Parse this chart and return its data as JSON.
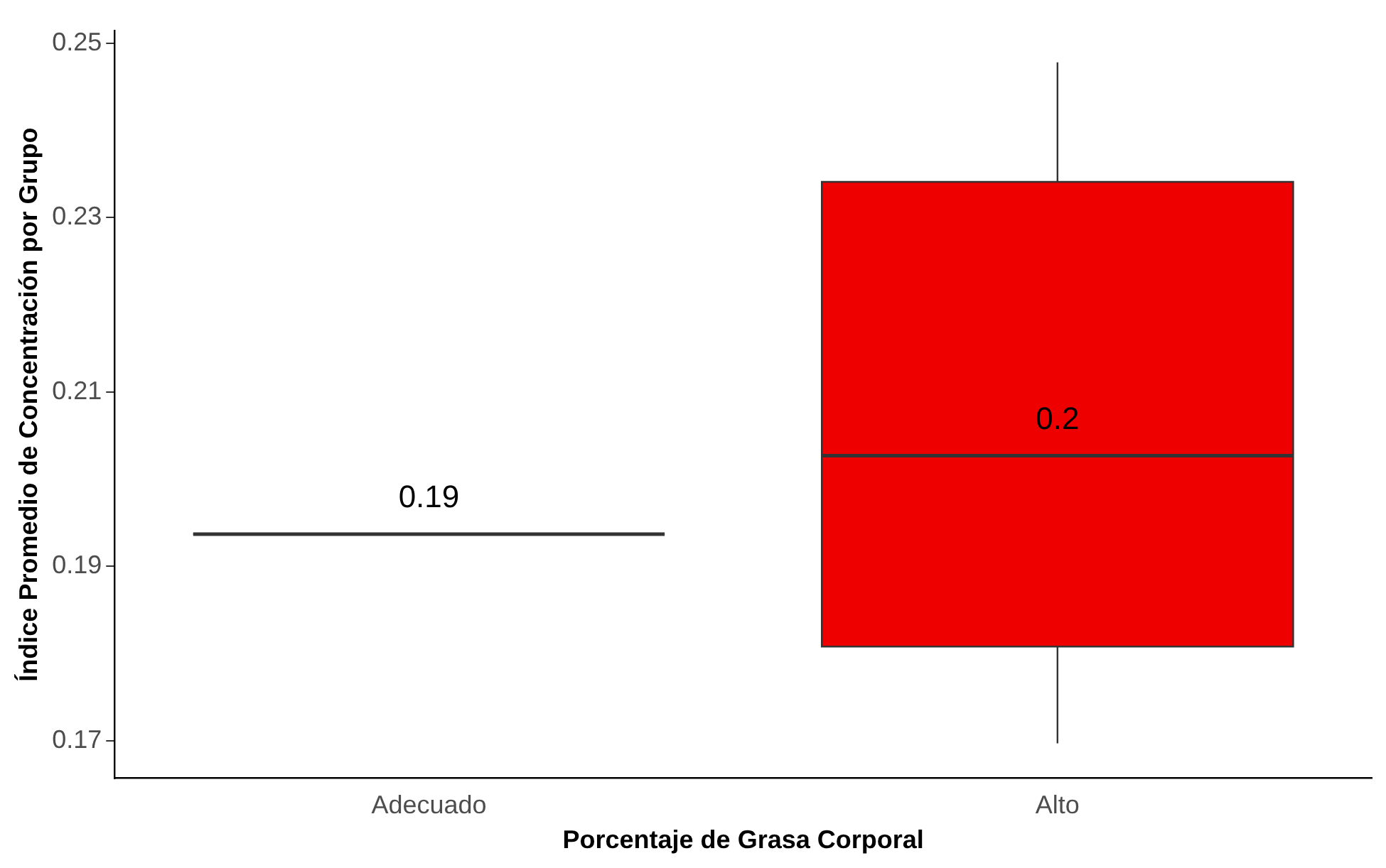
{
  "chart_data": {
    "type": "box",
    "xlabel": "Porcentaje de Grasa Corporal",
    "ylabel": "Índice Promedio de Concentración por Grupo",
    "categories": [
      "Adecuado",
      "Alto"
    ],
    "boxes": [
      {
        "low": 0.1937,
        "q1": 0.1937,
        "median": 0.1937,
        "q3": 0.1937,
        "high": 0.1937
      },
      {
        "low": 0.1697,
        "q1": 0.1808,
        "median": 0.2027,
        "q3": 0.2341,
        "high": 0.2478
      }
    ],
    "colors": [
      "#333333",
      "#ee0000"
    ],
    "ylim": [
      0.1657,
      0.2514
    ],
    "yticks": [
      0.17,
      0.19,
      0.21,
      0.23,
      0.25
    ],
    "grid": false,
    "legend": false,
    "annotations": [
      {
        "text": "0.19",
        "x": "Adecuado",
        "y": 0.1937
      },
      {
        "text": "0.2",
        "x": "Alto",
        "y": 0.2027
      }
    ]
  }
}
